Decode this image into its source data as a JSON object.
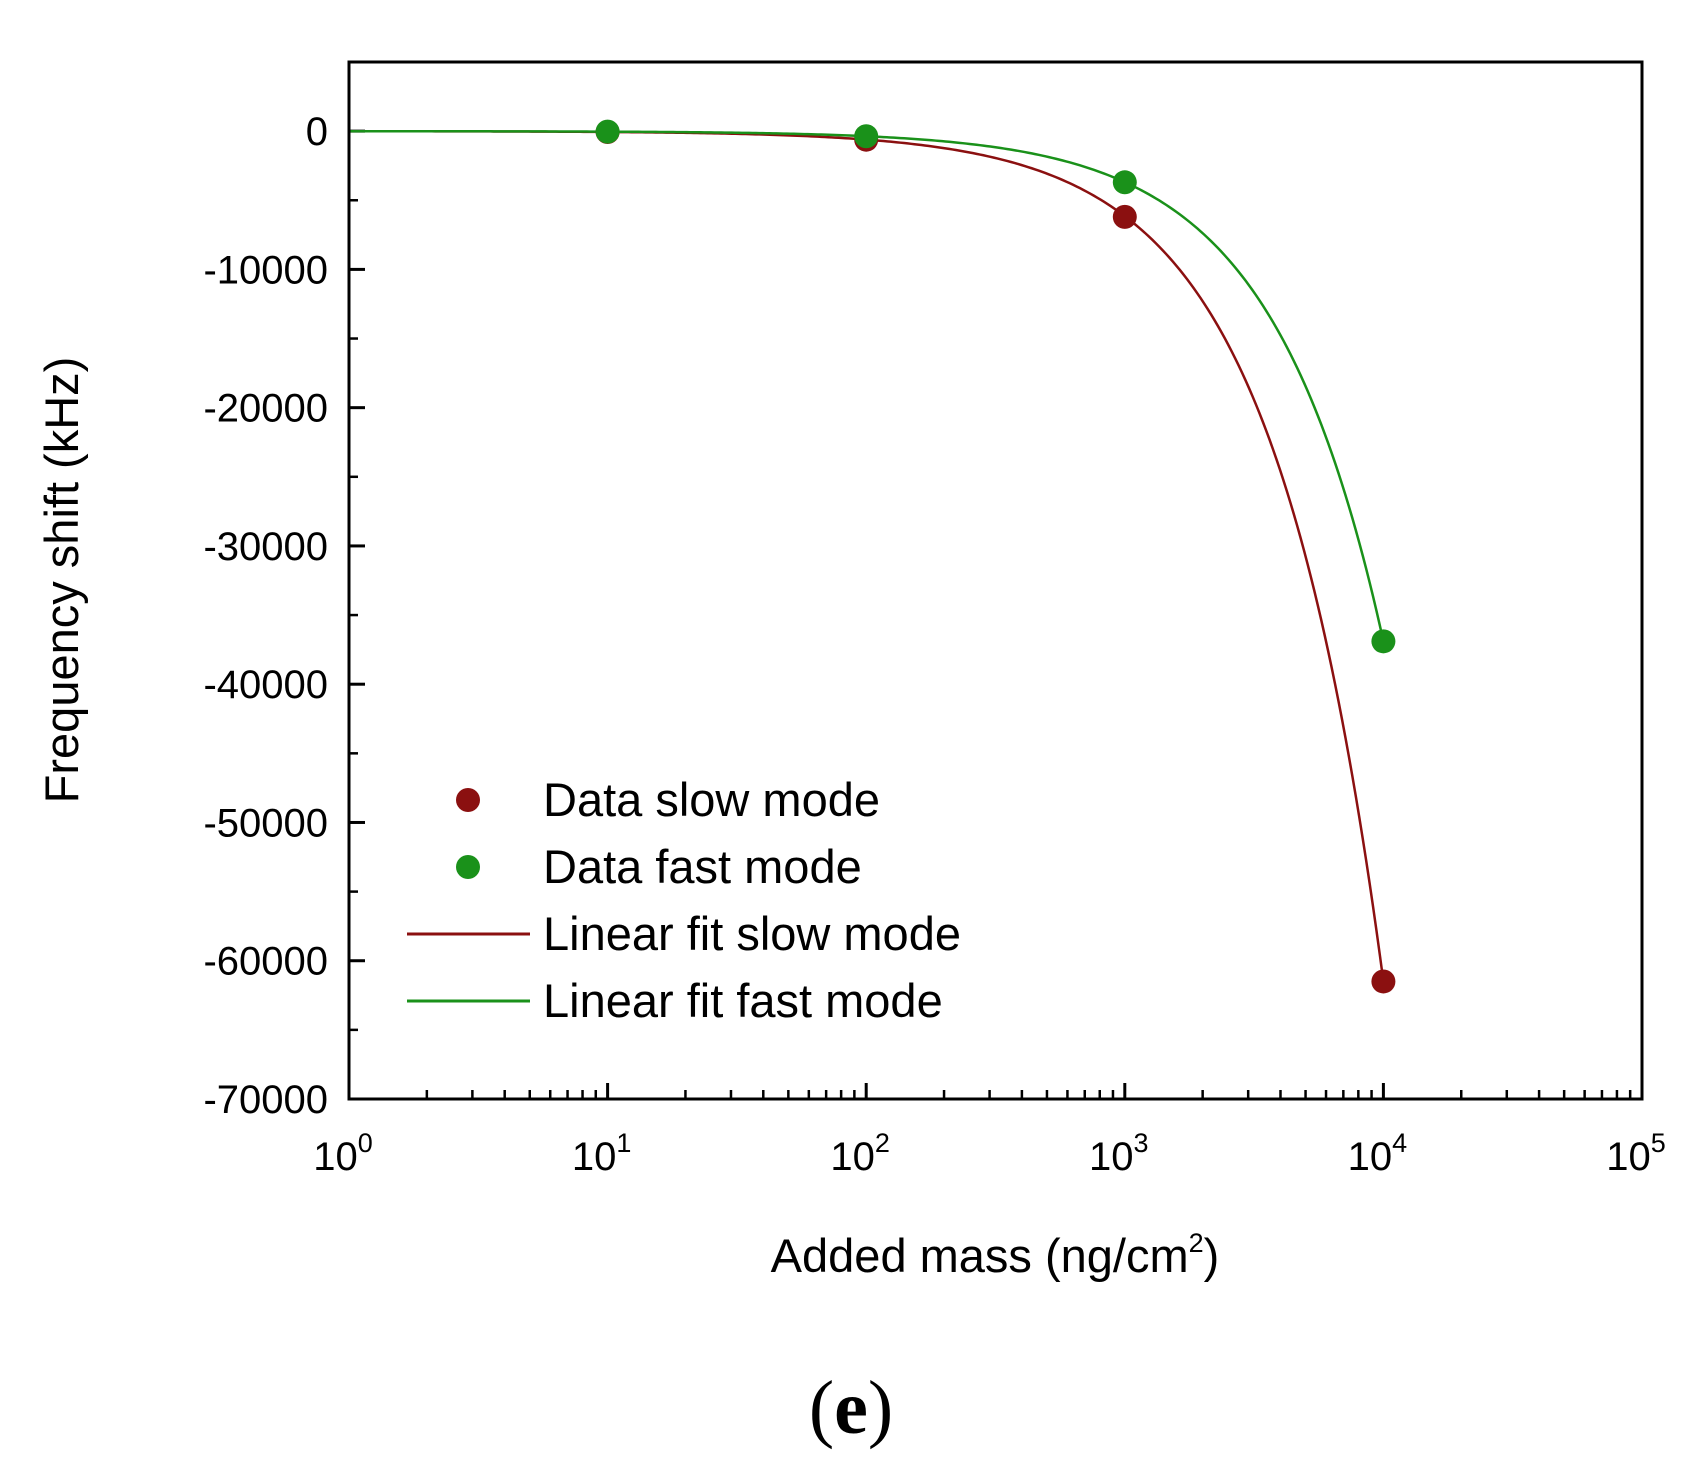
{
  "chart_data": {
    "type": "scatter",
    "title": "",
    "xlabel": "Added mass (ng/cm",
    "xlabel_sup": "2",
    "xlabel_close": ")",
    "ylabel": "Frequency shift (kHz)",
    "xscale": "log",
    "xlim": [
      1,
      100000
    ],
    "ylim": [
      -70000,
      5000
    ],
    "x_ticks": [
      {
        "base": "10",
        "exp": "0",
        "value": 1
      },
      {
        "base": "10",
        "exp": "1",
        "value": 10
      },
      {
        "base": "10",
        "exp": "2",
        "value": 100
      },
      {
        "base": "10",
        "exp": "3",
        "value": 1000
      },
      {
        "base": "10",
        "exp": "4",
        "value": 10000
      },
      {
        "base": "10",
        "exp": "5",
        "value": 100000
      }
    ],
    "y_ticks": [
      "0",
      "-10000",
      "-20000",
      "-30000",
      "-40000",
      "-50000",
      "-60000",
      "-70000"
    ],
    "y_tick_values": [
      0,
      -10000,
      -20000,
      -30000,
      -40000,
      -50000,
      -60000,
      -70000
    ],
    "series": [
      {
        "name": "Data slow mode",
        "kind": "scatter",
        "color": "#8b1010",
        "x": [
          10,
          100,
          1000,
          10000
        ],
        "y": [
          -62,
          -620,
          -6200,
          -61500
        ]
      },
      {
        "name": "Data fast mode",
        "kind": "scatter",
        "color": "#1a911a",
        "x": [
          10,
          100,
          1000,
          10000
        ],
        "y": [
          -37,
          -370,
          -3700,
          -36900
        ]
      },
      {
        "name": "Linear fit slow mode",
        "kind": "line",
        "color": "#8b1010",
        "slope": -6.15,
        "x_range": [
          1,
          10000
        ]
      },
      {
        "name": "Linear fit fast mode",
        "kind": "line",
        "color": "#1a911a",
        "slope": -3.69,
        "x_range": [
          1,
          10000
        ]
      }
    ],
    "legend_position": "lower-left",
    "panel_label": "e"
  }
}
